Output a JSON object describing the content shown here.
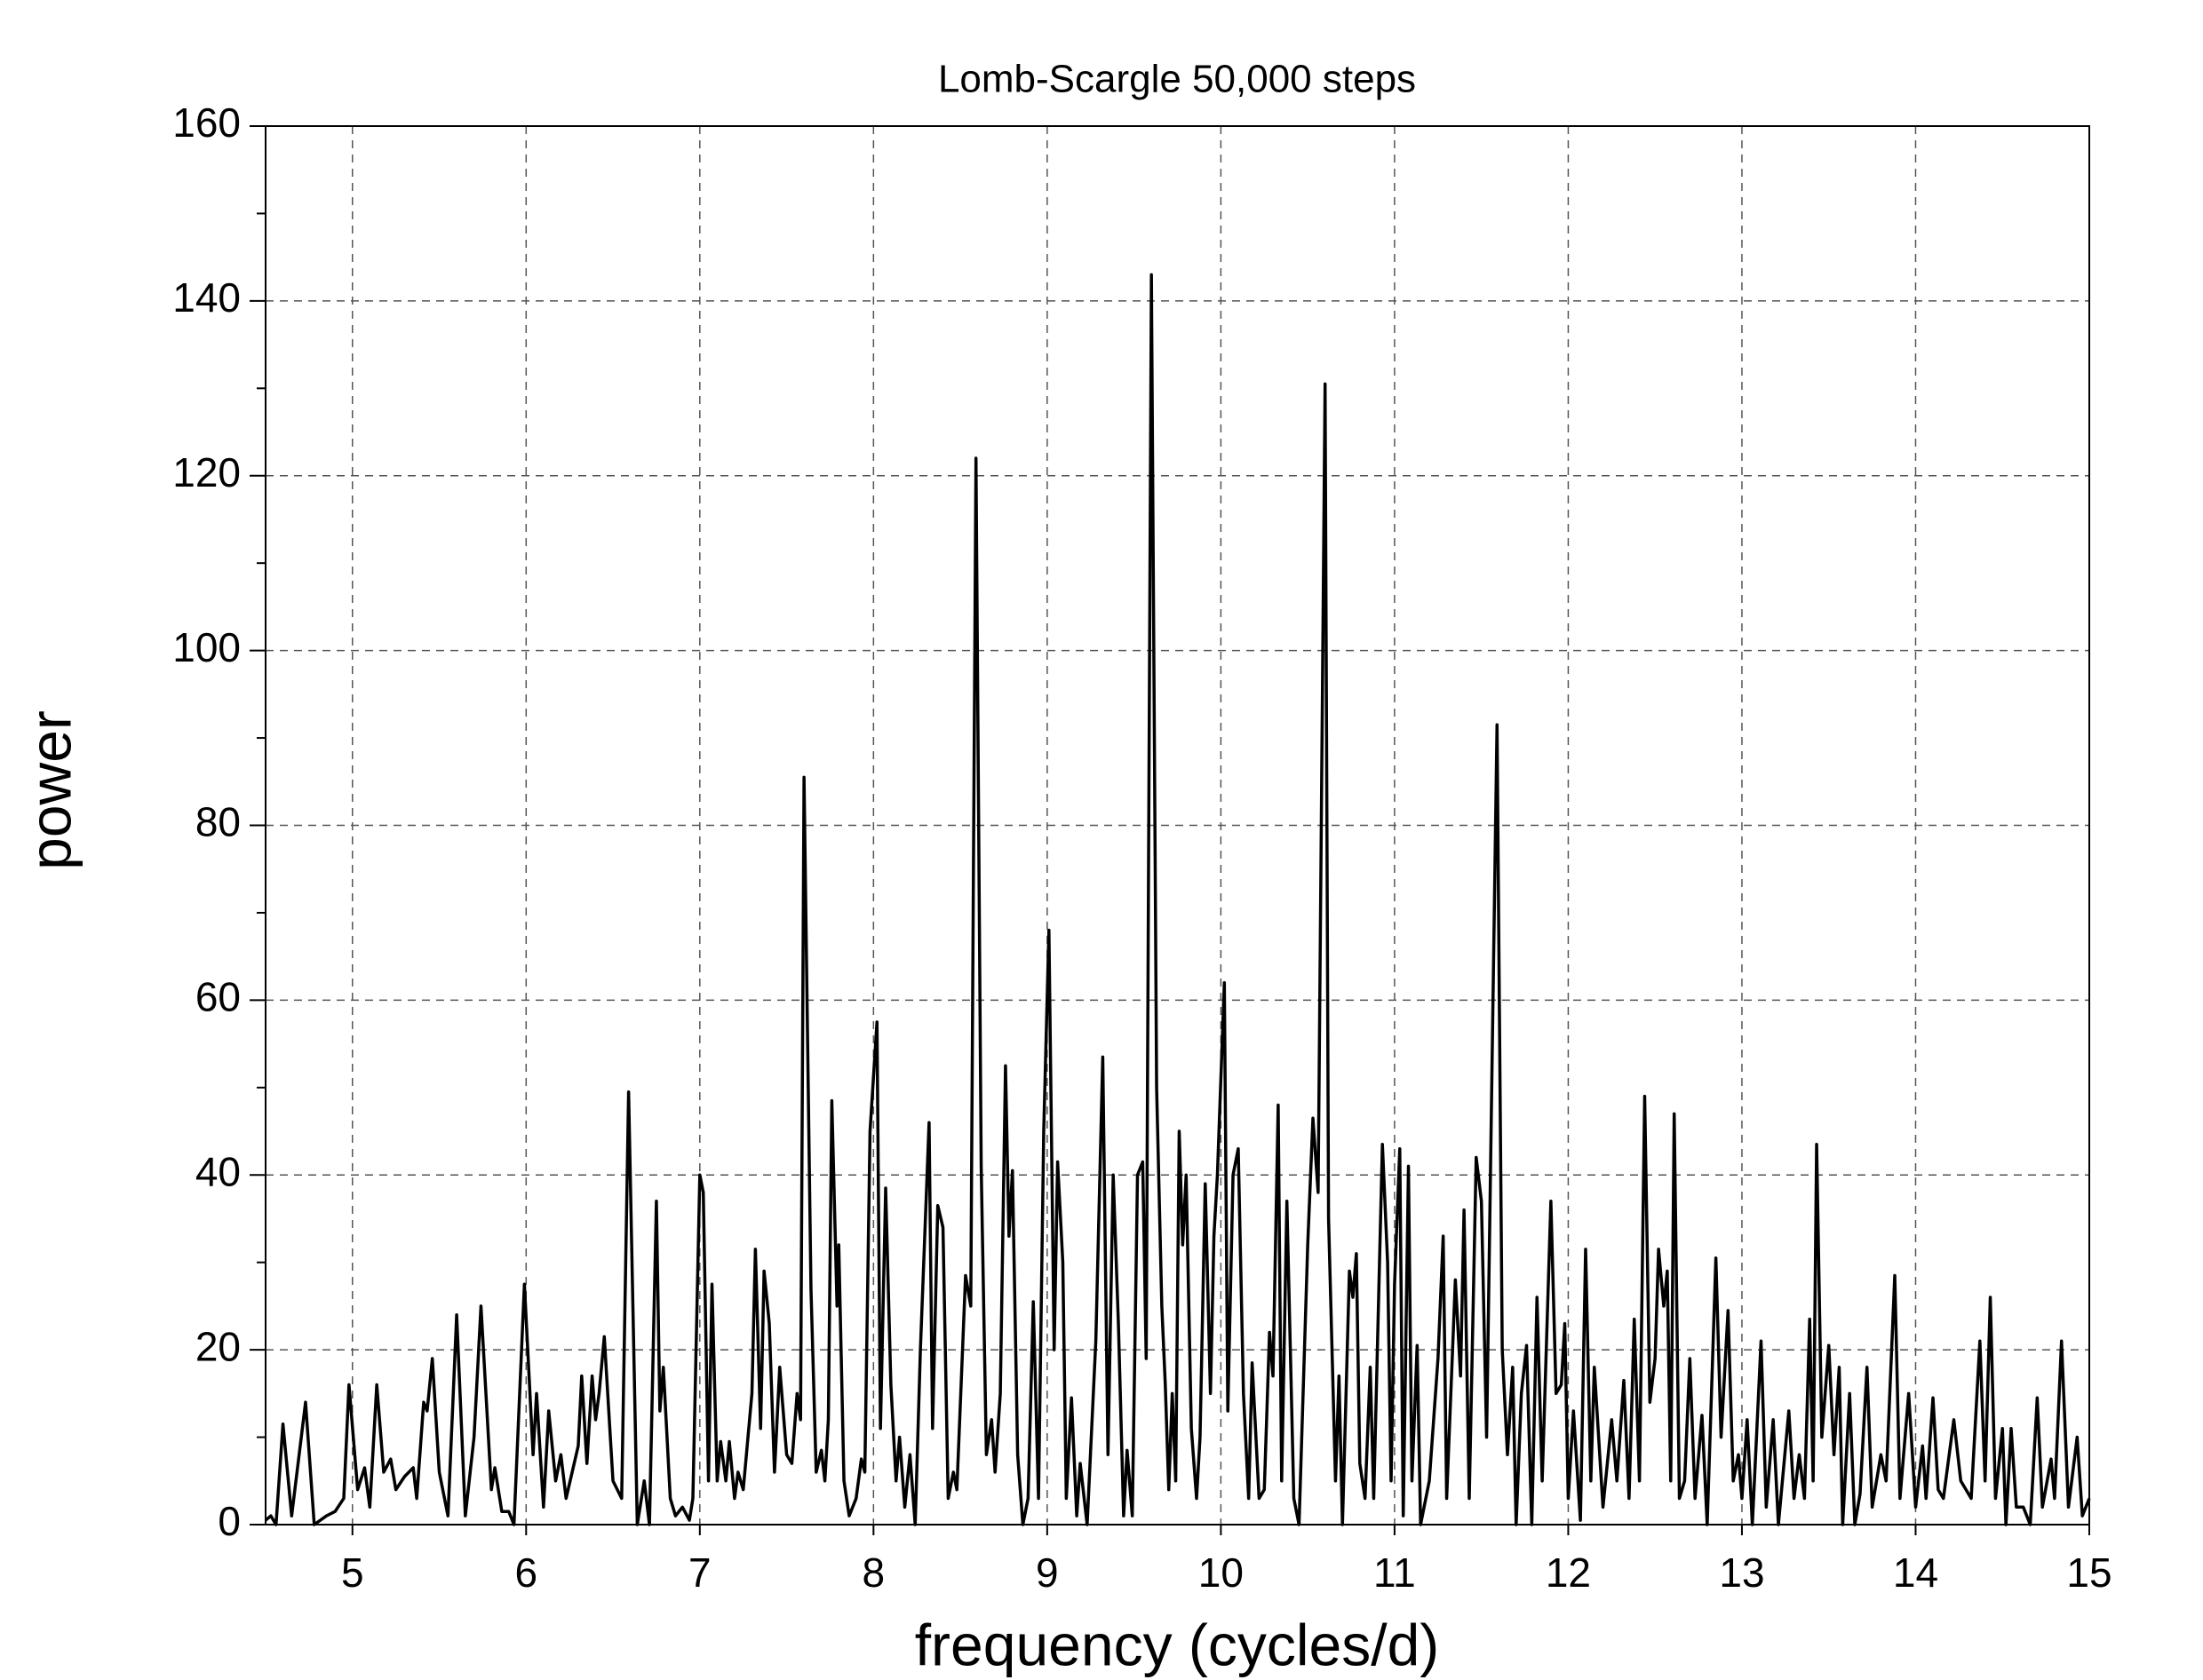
{
  "chart_data": {
    "type": "line",
    "title": "Lomb-Scargle 50,000 steps",
    "xlabel": "frequency (cycles/d)",
    "ylabel": "power",
    "xlim": [
      4.5,
      15
    ],
    "ylim": [
      0,
      160
    ],
    "xticks": [
      5,
      6,
      7,
      8,
      9,
      10,
      11,
      12,
      13,
      14,
      15
    ],
    "yticks": [
      0,
      20,
      40,
      60,
      80,
      100,
      120,
      140,
      160
    ],
    "minor_yticks": [
      10,
      30,
      50,
      70,
      90,
      110,
      130,
      150
    ],
    "grid": true,
    "x": [
      4.5,
      4.53,
      4.56,
      4.6,
      4.65,
      4.73,
      4.78,
      4.85,
      4.9,
      4.95,
      4.98,
      5.03,
      5.07,
      5.1,
      5.14,
      5.18,
      5.22,
      5.25,
      5.3,
      5.35,
      5.37,
      5.41,
      5.43,
      5.46,
      5.5,
      5.55,
      5.6,
      5.65,
      5.7,
      5.74,
      5.8,
      5.82,
      5.86,
      5.9,
      5.93,
      5.99,
      6.04,
      6.06,
      6.1,
      6.13,
      6.17,
      6.2,
      6.23,
      6.3,
      6.32,
      6.35,
      6.38,
      6.4,
      6.42,
      6.45,
      6.5,
      6.55,
      6.59,
      6.64,
      6.68,
      6.71,
      6.75,
      6.77,
      6.79,
      6.83,
      6.86,
      6.9,
      6.94,
      6.96,
      7.0,
      7.02,
      7.05,
      7.07,
      7.1,
      7.12,
      7.15,
      7.17,
      7.2,
      7.22,
      7.25,
      7.3,
      7.32,
      7.35,
      7.37,
      7.4,
      7.43,
      7.46,
      7.5,
      7.53,
      7.56,
      7.58,
      7.6,
      7.64,
      7.67,
      7.7,
      7.72,
      7.74,
      7.76,
      7.79,
      7.8,
      7.83,
      7.86,
      7.9,
      7.93,
      7.95,
      7.98,
      8.02,
      8.04,
      8.07,
      8.1,
      8.13,
      8.15,
      8.18,
      8.21,
      8.24,
      8.27,
      8.32,
      8.34,
      8.37,
      8.4,
      8.43,
      8.46,
      8.48,
      8.53,
      8.56,
      8.59,
      8.62,
      8.65,
      8.68,
      8.7,
      8.73,
      8.76,
      8.78,
      8.8,
      8.83,
      8.86,
      8.89,
      8.92,
      8.95,
      8.98,
      9.01,
      9.04,
      9.06,
      9.09,
      9.11,
      9.14,
      9.17,
      9.19,
      9.23,
      9.28,
      9.32,
      9.35,
      9.38,
      9.41,
      9.44,
      9.46,
      9.49,
      9.52,
      9.55,
      9.57,
      9.6,
      9.63,
      9.66,
      9.68,
      9.7,
      9.72,
      9.74,
      9.76,
      9.78,
      9.8,
      9.83,
      9.86,
      9.88,
      9.91,
      9.94,
      9.96,
      9.98,
      10.02,
      10.04,
      10.07,
      10.1,
      10.13,
      10.16,
      10.18,
      10.22,
      10.25,
      10.28,
      10.3,
      10.33,
      10.35,
      10.38,
      10.42,
      10.45,
      10.5,
      10.53,
      10.56,
      10.6,
      10.62,
      10.66,
      10.68,
      10.7,
      10.74,
      10.76,
      10.78,
      10.8,
      10.83,
      10.86,
      10.88,
      10.93,
      10.96,
      10.98,
      11.0,
      11.03,
      11.05,
      11.08,
      11.1,
      11.13,
      11.15,
      11.2,
      11.25,
      11.28,
      11.3,
      11.35,
      11.38,
      11.4,
      11.43,
      11.47,
      11.5,
      11.53,
      11.59,
      11.62,
      11.65,
      11.68,
      11.7,
      11.73,
      11.76,
      11.79,
      11.82,
      11.85,
      11.9,
      11.93,
      11.96,
      11.98,
      12.0,
      12.03,
      12.07,
      12.1,
      12.13,
      12.15,
      12.2,
      12.25,
      12.28,
      12.32,
      12.35,
      12.38,
      12.41,
      12.44,
      12.47,
      12.5,
      12.52,
      12.55,
      12.57,
      12.59,
      12.61,
      12.64,
      12.67,
      12.7,
      12.73,
      12.77,
      12.8,
      12.85,
      12.88,
      12.92,
      12.95,
      12.98,
      13.0,
      13.03,
      13.06,
      13.11,
      13.14,
      13.18,
      13.21,
      13.27,
      13.3,
      13.33,
      13.36,
      13.39,
      13.41,
      13.43,
      13.46,
      13.5,
      13.53,
      13.56,
      13.58,
      13.62,
      13.65,
      13.68,
      13.72,
      13.75,
      13.8,
      13.83,
      13.88,
      13.91,
      13.96,
      14.0,
      14.04,
      14.06,
      14.1,
      14.13,
      14.16,
      14.22,
      14.26,
      14.32,
      14.37,
      14.4,
      14.43,
      14.46,
      14.5,
      14.52,
      14.55,
      14.58,
      14.62,
      14.66,
      14.7,
      14.73,
      14.78,
      14.8,
      14.84,
      14.88,
      14.93,
      14.96,
      15.0
    ],
    "series": [
      {
        "color": "#000000",
        "values": [
          0.5,
          1,
          0,
          11.5,
          1,
          14,
          0,
          1,
          1.5,
          3,
          16,
          4,
          6.5,
          2,
          16,
          6,
          7.5,
          4,
          5.5,
          6.5,
          3,
          14,
          13,
          19,
          6,
          1,
          24,
          1,
          10,
          25,
          4,
          6.5,
          1.5,
          1.5,
          0,
          27.5,
          8,
          15,
          2,
          13,
          5,
          8,
          3,
          9,
          17,
          7,
          17,
          12,
          15,
          21.5,
          5,
          3,
          49.5,
          0,
          5,
          0,
          37,
          13,
          18,
          3,
          1,
          2,
          0.5,
          3,
          40,
          38,
          5,
          27.5,
          5,
          9.5,
          5,
          9.5,
          3,
          6,
          4,
          15,
          31.5,
          11,
          29,
          23,
          6,
          18,
          8,
          7,
          15,
          12,
          85.5,
          27,
          6,
          8.5,
          5,
          12,
          48.5,
          25,
          32,
          5,
          1,
          3,
          7.5,
          6,
          45,
          57.5,
          11,
          38.5,
          16,
          5,
          10,
          2,
          8,
          0,
          20,
          46,
          11,
          36.5,
          34,
          3,
          6,
          4,
          28.5,
          25,
          122,
          41,
          8,
          12,
          6,
          15,
          52.5,
          33,
          40.5,
          8,
          0,
          3,
          25.5,
          3,
          45,
          68,
          20,
          41.5,
          30,
          3,
          14.5,
          1,
          7,
          0,
          21,
          53.5,
          8,
          40,
          23,
          1,
          8.5,
          1,
          40,
          41.5,
          19,
          143,
          50,
          25,
          16,
          4,
          15,
          5,
          45,
          32,
          40,
          11,
          3,
          10,
          39,
          15,
          33,
          40,
          62,
          13,
          40,
          43,
          15,
          3,
          18.5,
          3,
          4,
          22,
          17,
          48,
          5,
          37,
          3,
          0,
          32,
          46.5,
          38,
          130.5,
          35,
          5,
          17,
          0,
          29,
          26,
          31,
          7,
          3,
          18,
          3,
          43.5,
          30,
          5,
          27.5,
          43,
          1,
          41,
          5,
          20.5,
          0,
          5,
          19,
          33,
          3,
          28,
          17,
          36,
          3,
          42,
          37,
          10,
          91.5,
          20,
          8,
          18,
          0,
          15,
          20.5,
          0,
          26,
          5,
          37,
          15,
          16,
          23,
          3,
          13,
          0.5,
          31.5,
          5,
          18,
          2,
          12,
          5,
          16.5,
          3,
          23.5,
          5,
          49,
          14,
          19,
          31.5,
          25,
          29,
          5,
          47,
          3,
          5,
          19,
          3,
          12.5,
          0,
          30.5,
          10,
          24.5,
          5,
          8,
          3,
          12,
          0,
          21,
          2,
          12,
          0,
          13,
          3,
          8,
          3,
          23.5,
          5,
          43.5,
          10,
          20.5,
          8,
          18,
          0,
          15,
          0,
          3.5,
          18,
          2,
          8,
          5,
          28.5,
          3,
          15,
          2,
          9,
          3,
          14.5,
          4,
          3,
          12,
          5,
          3,
          21,
          5,
          26,
          3,
          11,
          0,
          11,
          2,
          2,
          0,
          14.5,
          2,
          7.5,
          3,
          21,
          2,
          10,
          1,
          3
        ]
      }
    ]
  }
}
